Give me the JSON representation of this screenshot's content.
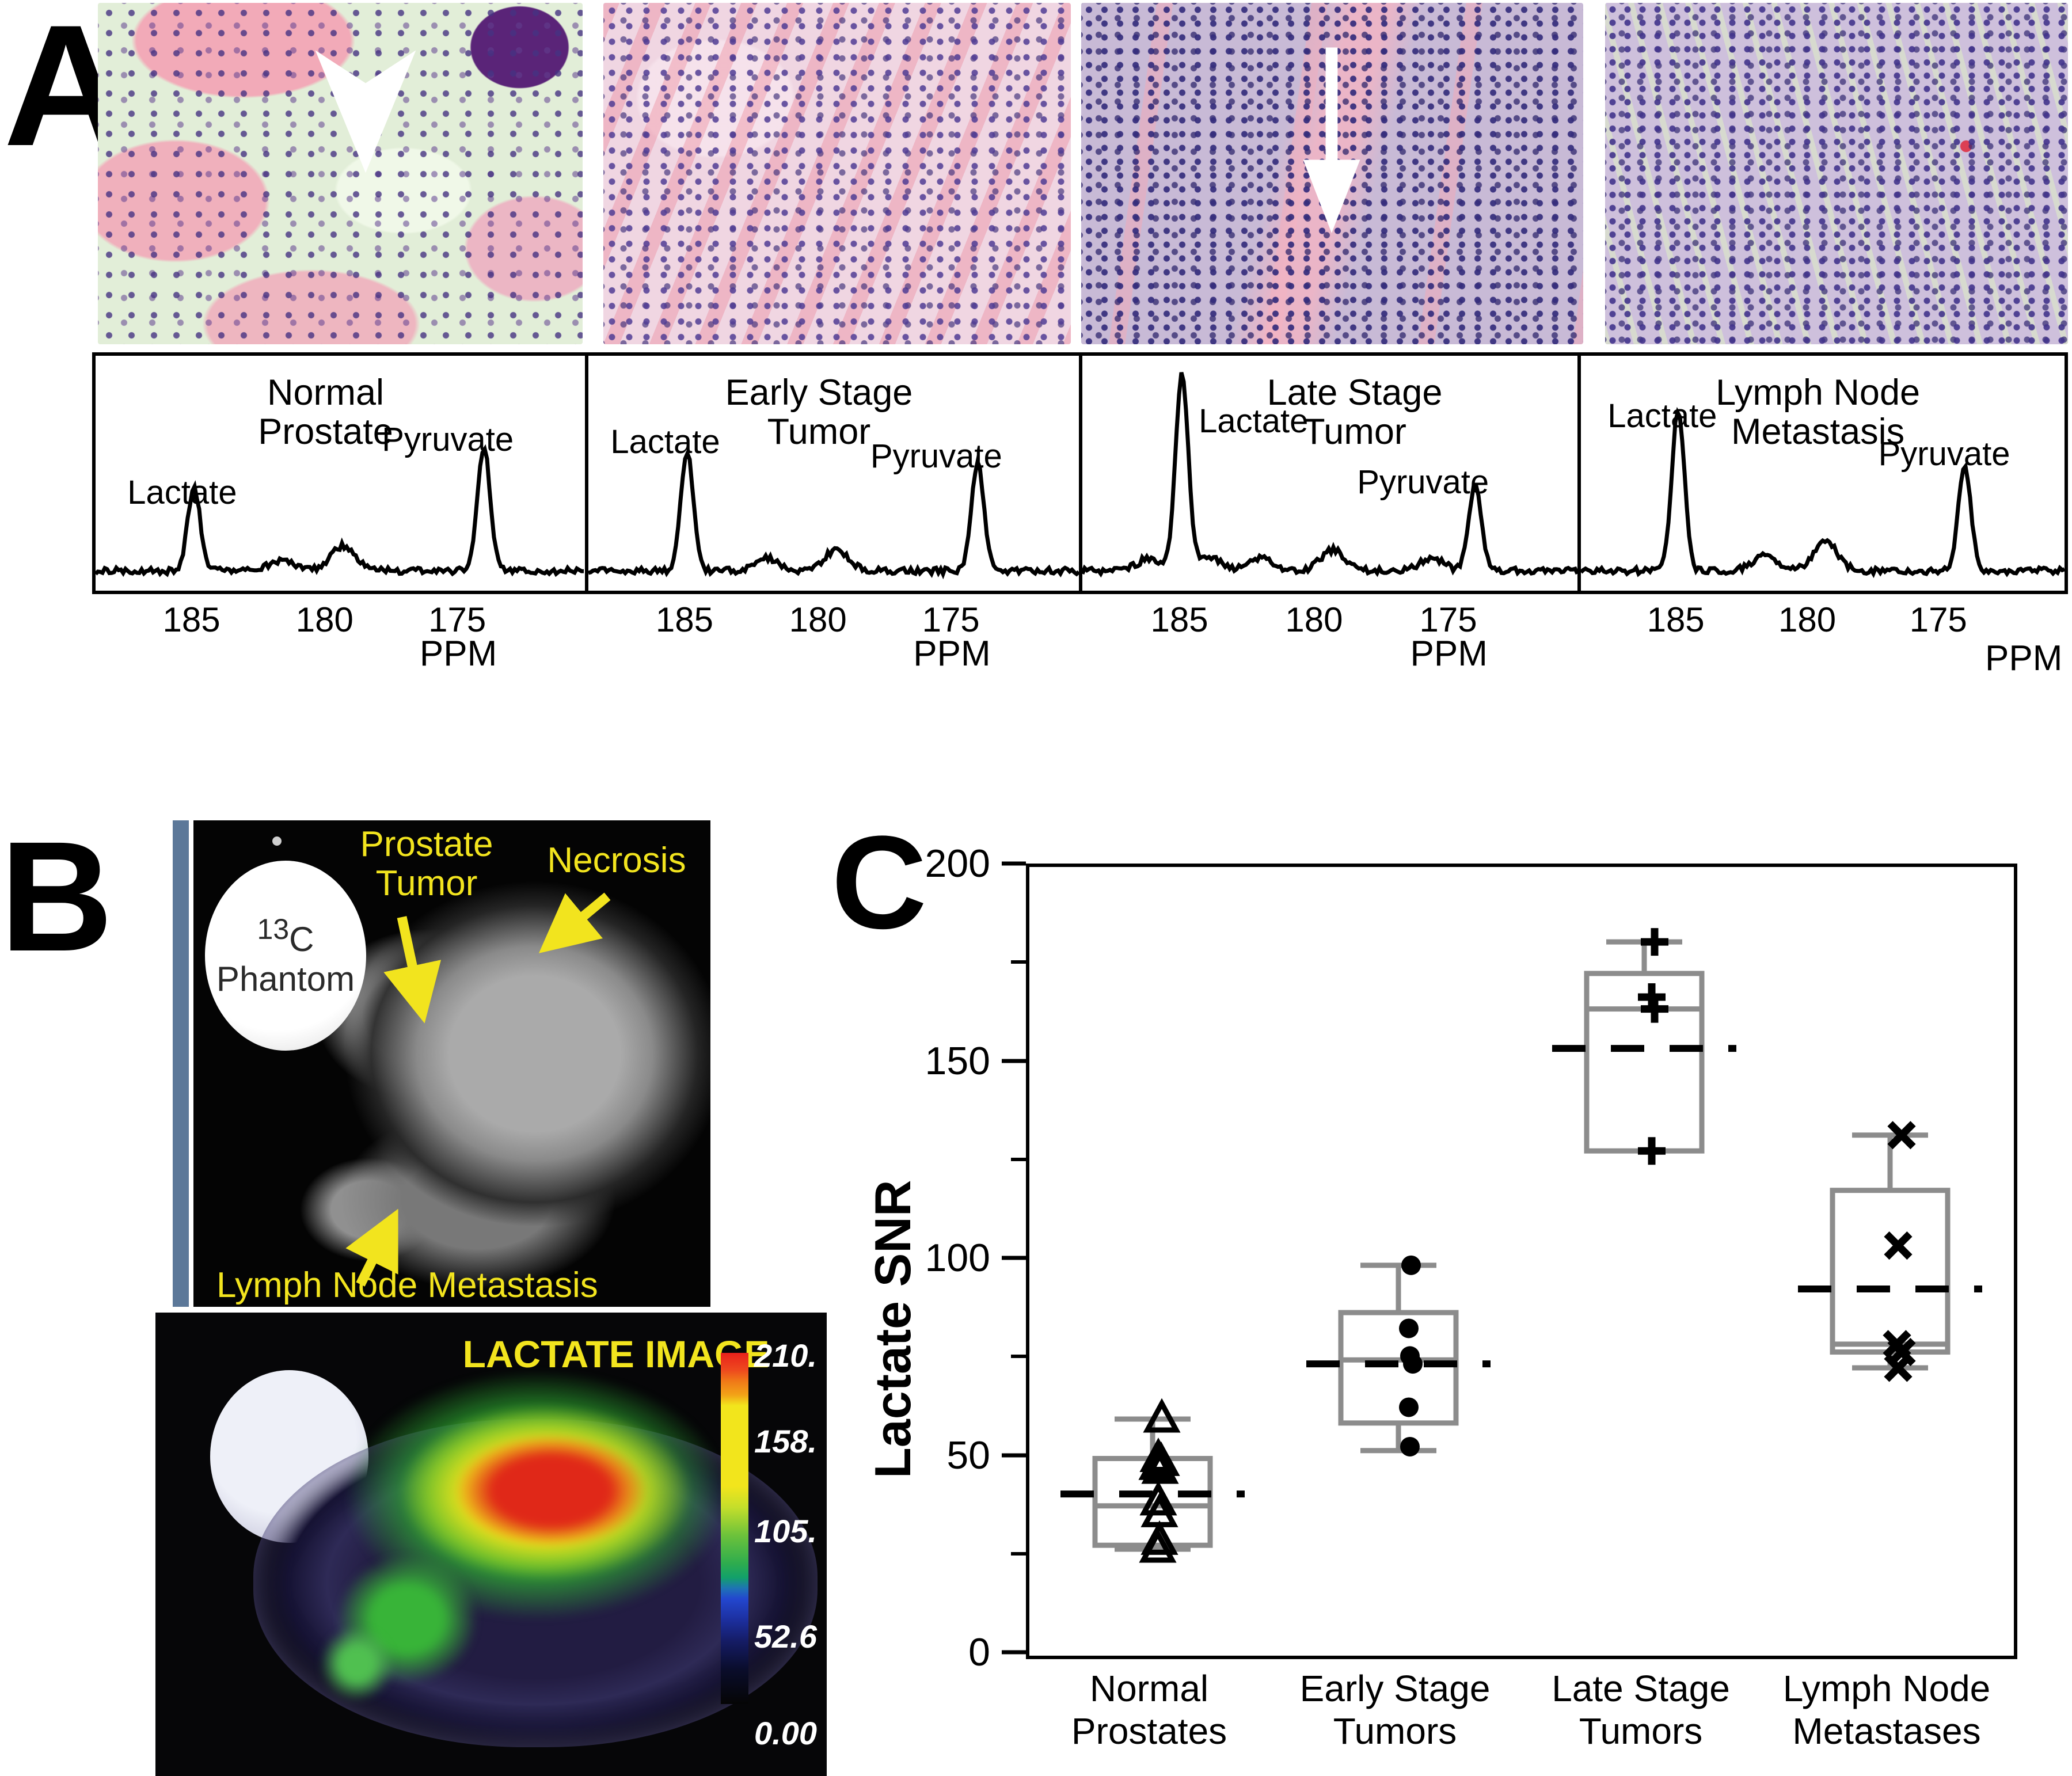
{
  "panel_labels": {
    "a": "A",
    "b": "B",
    "c": "C"
  },
  "colors": {
    "mri_label_yellow": "#f2e41e",
    "mri_side_bar_blue": "#5c7899",
    "boxplot_line_gray": "#8c8c8c",
    "marker_black": "#000000",
    "heat_red": "#e02818",
    "heat_yellow": "#f2e51c",
    "heat_green": "#30b030"
  },
  "histology": {
    "items": [
      {
        "name": "normal-prostate-histology",
        "annotation": "white arrowhead"
      },
      {
        "name": "early-stage-tumor-histology",
        "annotation": ""
      },
      {
        "name": "late-stage-tumor-histology",
        "annotation": "white arrow"
      },
      {
        "name": "lymph-node-metastasis-histology",
        "annotation": ""
      }
    ]
  },
  "spectra": {
    "x_axis_label": "PPM",
    "x_ticks": [
      "185",
      "180",
      "175"
    ],
    "panels": [
      {
        "title_line1": "Normal",
        "title_line2": "Prostate",
        "lactate_label": "Lactate",
        "pyruvate_label": "Pyruvate"
      },
      {
        "title_line1": "Early Stage",
        "title_line2": "Tumor",
        "lactate_label": "Lactate",
        "pyruvate_label": "Pyruvate"
      },
      {
        "title_line1": "Late Stage",
        "title_line2": "Tumor",
        "lactate_label": "Lactate",
        "pyruvate_label": "Pyruvate"
      },
      {
        "title_line1": "Lymph Node",
        "title_line2": "Metastasis",
        "lactate_label": "Lactate",
        "pyruvate_label": "Pyruvate"
      }
    ]
  },
  "panel_b": {
    "phantom": {
      "isotope": "13",
      "element": "C",
      "word": "Phantom"
    },
    "labels": {
      "prostate_tumor_line1": "Prostate",
      "prostate_tumor_line2": "Tumor",
      "necrosis": "Necrosis",
      "lymph_node": "Lymph Node Metastasis",
      "lactate_image_title": "LACTATE IMAGE"
    },
    "colorbar": {
      "labels": [
        "210.",
        "158.",
        "105.",
        "52.6",
        "0.00"
      ],
      "label_fracs": [
        0.0,
        0.245,
        0.5,
        0.8,
        1.075
      ],
      "stops": [
        [
          "0%",
          "#e8211c"
        ],
        [
          "5%",
          "#ee4a1e"
        ],
        [
          "8%",
          "#f07818"
        ],
        [
          "12%",
          "#f2a317"
        ],
        [
          "15%",
          "#f2e51c"
        ],
        [
          "38%",
          "#f2e51c"
        ],
        [
          "44%",
          "#c4de2b"
        ],
        [
          "52%",
          "#6cc23b"
        ],
        [
          "60%",
          "#2eac4e"
        ],
        [
          "64%",
          "#12a06a"
        ],
        [
          "67%",
          "#1e74b4"
        ],
        [
          "70%",
          "#2347cf"
        ],
        [
          "76%",
          "#1c2f9f"
        ],
        [
          "82%",
          "#151c66"
        ],
        [
          "90%",
          "#0a0d2c"
        ],
        [
          "100%",
          "#050505"
        ]
      ]
    }
  },
  "chart_data": [
    {
      "type": "box",
      "title": "",
      "xlabel": "",
      "ylabel": "Lactate SNR",
      "ylim": [
        0,
        200
      ],
      "yticks": [
        0,
        50,
        100,
        150,
        200
      ],
      "yticks_minor": [
        25,
        75,
        125,
        175
      ],
      "grid": false,
      "categories": [
        [
          "Normal",
          "Prostates"
        ],
        [
          "Early Stage",
          "Tumors"
        ],
        [
          "Late Stage",
          "Tumors"
        ],
        [
          "Lymph Node",
          "Metastases"
        ]
      ],
      "series": [
        {
          "name": "Normal Prostates",
          "marker": "triangle-open",
          "q1": 28,
          "median": 38,
          "q3": 50,
          "mean": 41,
          "whisker_low": 27,
          "whisker_high": 60,
          "points": [
            [
              60,
              16
            ],
            [
              50,
              10
            ],
            [
              49,
              15
            ],
            [
              48,
              8
            ],
            [
              47,
              13
            ],
            [
              39,
              10
            ],
            [
              36,
              12
            ],
            [
              29,
              12
            ],
            [
              27,
              9
            ]
          ]
        },
        {
          "name": "Early Stage Tumors",
          "marker": "circle-filled",
          "q1": 59,
          "median": 75,
          "q3": 87,
          "mean": 74,
          "whisker_low": 52,
          "whisker_high": 99,
          "points": [
            [
              99,
              22
            ],
            [
              83,
              18
            ],
            [
              76,
              20
            ],
            [
              74,
              25
            ],
            [
              63,
              18
            ],
            [
              53,
              20
            ]
          ]
        },
        {
          "name": "Late Stage Tumors",
          "marker": "plus",
          "q1": 128,
          "median": 164,
          "q3": 173,
          "mean": 154,
          "whisker_low": 128,
          "whisker_high": 181,
          "points": [
            [
              181,
              18
            ],
            [
              167,
              13
            ],
            [
              164,
              18
            ],
            [
              128,
              13
            ]
          ]
        },
        {
          "name": "Lymph Node Metastases",
          "marker": "x",
          "q1": 77,
          "median": 79,
          "q3": 118,
          "mean": 93,
          "whisker_low": 73,
          "whisker_high": 132,
          "points": [
            [
              132,
              20
            ],
            [
              104,
              14
            ],
            [
              79,
              12
            ],
            [
              77,
              20
            ],
            [
              73,
              14
            ]
          ]
        }
      ]
    },
    {
      "type": "line",
      "title": "Normal Prostate",
      "xlabel": "PPM",
      "x_ticks": [
        185,
        180,
        175
      ],
      "x_range": [
        188.6,
        170.2
      ],
      "peaks": [
        {
          "label": "Lactate",
          "ppm": 184.9,
          "rel_height": 0.4
        },
        {
          "ppm": 181.6,
          "rel_height": 0.05
        },
        {
          "ppm": 179.3,
          "rel_height": 0.12
        },
        {
          "label": "Pyruvate",
          "ppm": 174.0,
          "rel_height": 0.6
        }
      ]
    },
    {
      "type": "line",
      "title": "Early Stage Tumor",
      "xlabel": "PPM",
      "x_ticks": [
        185,
        180,
        175
      ],
      "x_range": [
        188.6,
        170.2
      ],
      "peaks": [
        {
          "label": "Lactate",
          "ppm": 184.9,
          "rel_height": 0.58
        },
        {
          "ppm": 181.9,
          "rel_height": 0.06
        },
        {
          "ppm": 179.3,
          "rel_height": 0.1
        },
        {
          "label": "Pyruvate",
          "ppm": 174.0,
          "rel_height": 0.52
        }
      ]
    },
    {
      "type": "line",
      "title": "Late Stage Tumor",
      "xlabel": "PPM",
      "x_ticks": [
        185,
        180,
        175
      ],
      "x_range": [
        188.6,
        170.2
      ],
      "peaks": [
        {
          "ppm": 186.1,
          "rel_height": 0.06
        },
        {
          "label": "Lactate",
          "ppm": 184.9,
          "rel_height": 0.95
        },
        {
          "ppm": 183.9,
          "rel_height": 0.07
        },
        {
          "ppm": 181.9,
          "rel_height": 0.06
        },
        {
          "ppm": 179.3,
          "rel_height": 0.1
        },
        {
          "ppm": 175.6,
          "rel_height": 0.06
        },
        {
          "label": "Pyruvate",
          "ppm": 174.0,
          "rel_height": 0.42
        }
      ]
    },
    {
      "type": "line",
      "title": "Lymph Node Metastasis",
      "xlabel": "PPM",
      "x_ticks": [
        185,
        180,
        175
      ],
      "x_range": [
        188.6,
        170.2
      ],
      "peaks": [
        {
          "label": "Lactate",
          "ppm": 184.9,
          "rel_height": 0.78
        },
        {
          "ppm": 181.6,
          "rel_height": 0.07
        },
        {
          "ppm": 179.3,
          "rel_height": 0.14
        },
        {
          "label": "Pyruvate",
          "ppm": 174.0,
          "rel_height": 0.5
        }
      ]
    }
  ]
}
